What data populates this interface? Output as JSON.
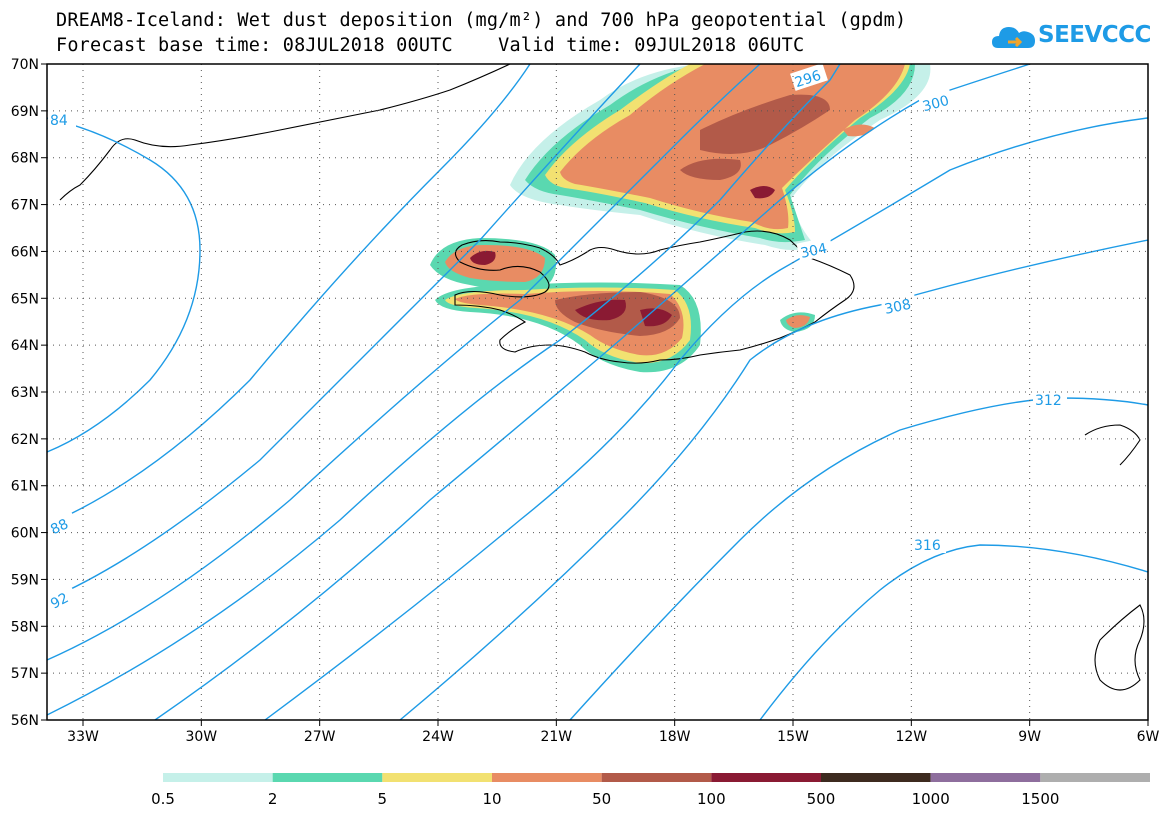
{
  "header": {
    "title_line1": "DREAM8-Iceland: Wet dust deposition (mg/m²) and 700 hPa geopotential (gpdm)",
    "title_line2": "Forecast base time: 08JUL2018 00UTC    Valid time: 09JUL2018 06UTC"
  },
  "logo": {
    "text": "SEEVCCC",
    "icon": "cloud-icon",
    "color": "#1e9be6"
  },
  "map": {
    "lat_labels": [
      "70N",
      "69N",
      "68N",
      "67N",
      "66N",
      "65N",
      "64N",
      "63N",
      "62N",
      "61N",
      "60N",
      "59N",
      "58N",
      "57N",
      "56N"
    ],
    "lon_labels": [
      "33W",
      "30W",
      "27W",
      "24W",
      "21W",
      "18W",
      "15W",
      "12W",
      "9W",
      "6W"
    ],
    "contour_color": "#1e9be6",
    "contour_labels": [
      "84",
      "88",
      "92",
      "296",
      "300",
      "304",
      "308",
      "312",
      "316"
    ]
  },
  "legend": {
    "labels": [
      "0.5",
      "2",
      "5",
      "10",
      "50",
      "100",
      "500",
      "1000",
      "1500"
    ],
    "colors": [
      "#c5f0e9",
      "#5ad8b0",
      "#f2e171",
      "#e88c63",
      "#b25a49",
      "#8a1a33",
      "#3d2a1f",
      "#8e6e9d",
      "#aeaeae"
    ]
  }
}
